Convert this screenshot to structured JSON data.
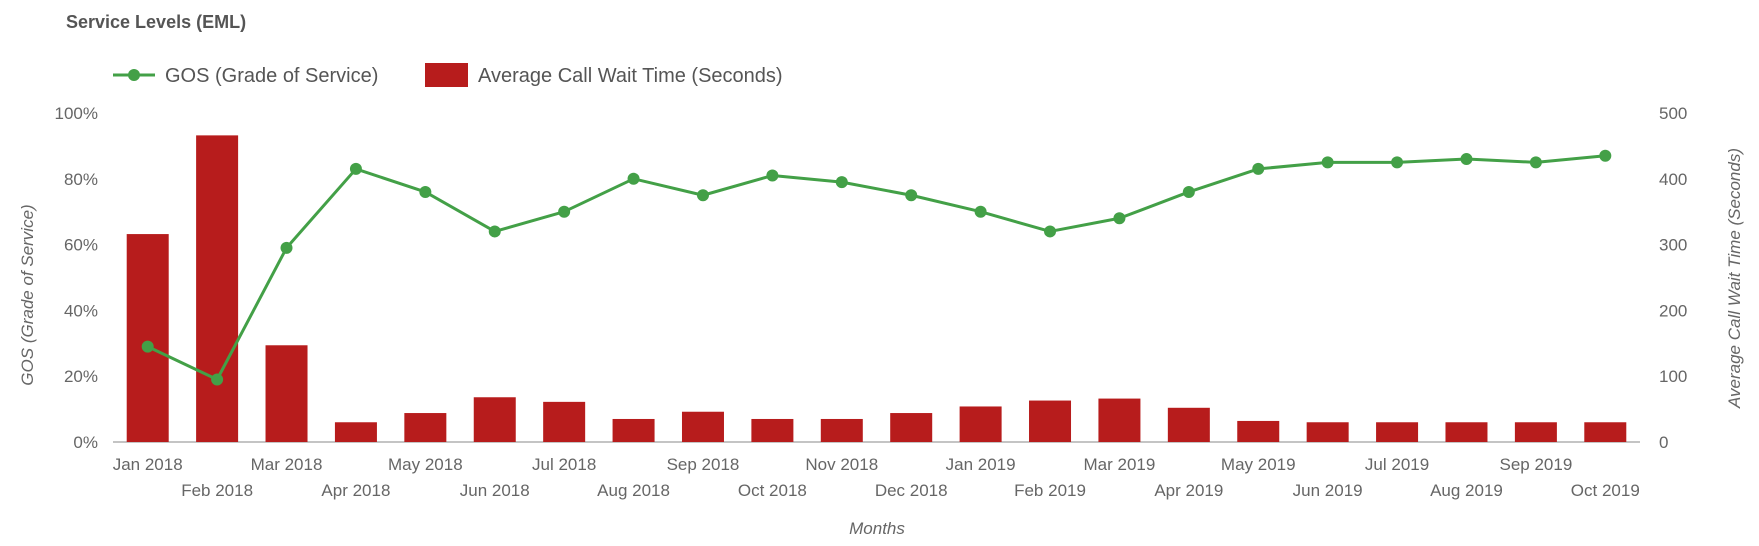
{
  "chart_data": {
    "type": "bar",
    "title": "Service Levels (EML)",
    "xlabel": "Months",
    "ylabel_left": "GOS (Grade of Service)",
    "ylabel_right": "Average Call Wait Time (Seconds)",
    "categories": [
      "Jan 2018",
      "Feb 2018",
      "Mar 2018",
      "Apr 2018",
      "May 2018",
      "Jun 2018",
      "Jul 2018",
      "Aug 2018",
      "Sep 2018",
      "Oct 2018",
      "Nov 2018",
      "Dec 2018",
      "Jan 2019",
      "Feb 2019",
      "Mar 2019",
      "Apr 2019",
      "May 2019",
      "Jun 2019",
      "Jul 2019",
      "Aug 2019",
      "Sep 2019",
      "Oct 2019"
    ],
    "left_axis": {
      "min": 0,
      "max": 100,
      "ticks": [
        "0%",
        "20%",
        "40%",
        "60%",
        "80%",
        "100%"
      ]
    },
    "right_axis": {
      "min": 0,
      "max": 500,
      "ticks": [
        "0",
        "100",
        "200",
        "300",
        "400",
        "500"
      ]
    },
    "legend_position": "top-left",
    "series": [
      {
        "name": "GOS (Grade of Service)",
        "type": "line",
        "axis": "left",
        "color": "#43a047",
        "values": [
          29,
          19,
          59,
          83,
          76,
          64,
          70,
          80,
          75,
          81,
          79,
          75,
          70,
          64,
          68,
          76,
          83,
          85,
          85,
          86,
          85,
          87
        ]
      },
      {
        "name": "Average Call Wait Time (Seconds)",
        "type": "bar",
        "axis": "right",
        "color": "#b71c1c",
        "values": [
          316,
          466,
          147,
          30,
          44,
          68,
          61,
          35,
          46,
          35,
          35,
          44,
          54,
          63,
          66,
          52,
          32,
          30,
          30,
          30,
          30,
          30
        ]
      }
    ]
  }
}
